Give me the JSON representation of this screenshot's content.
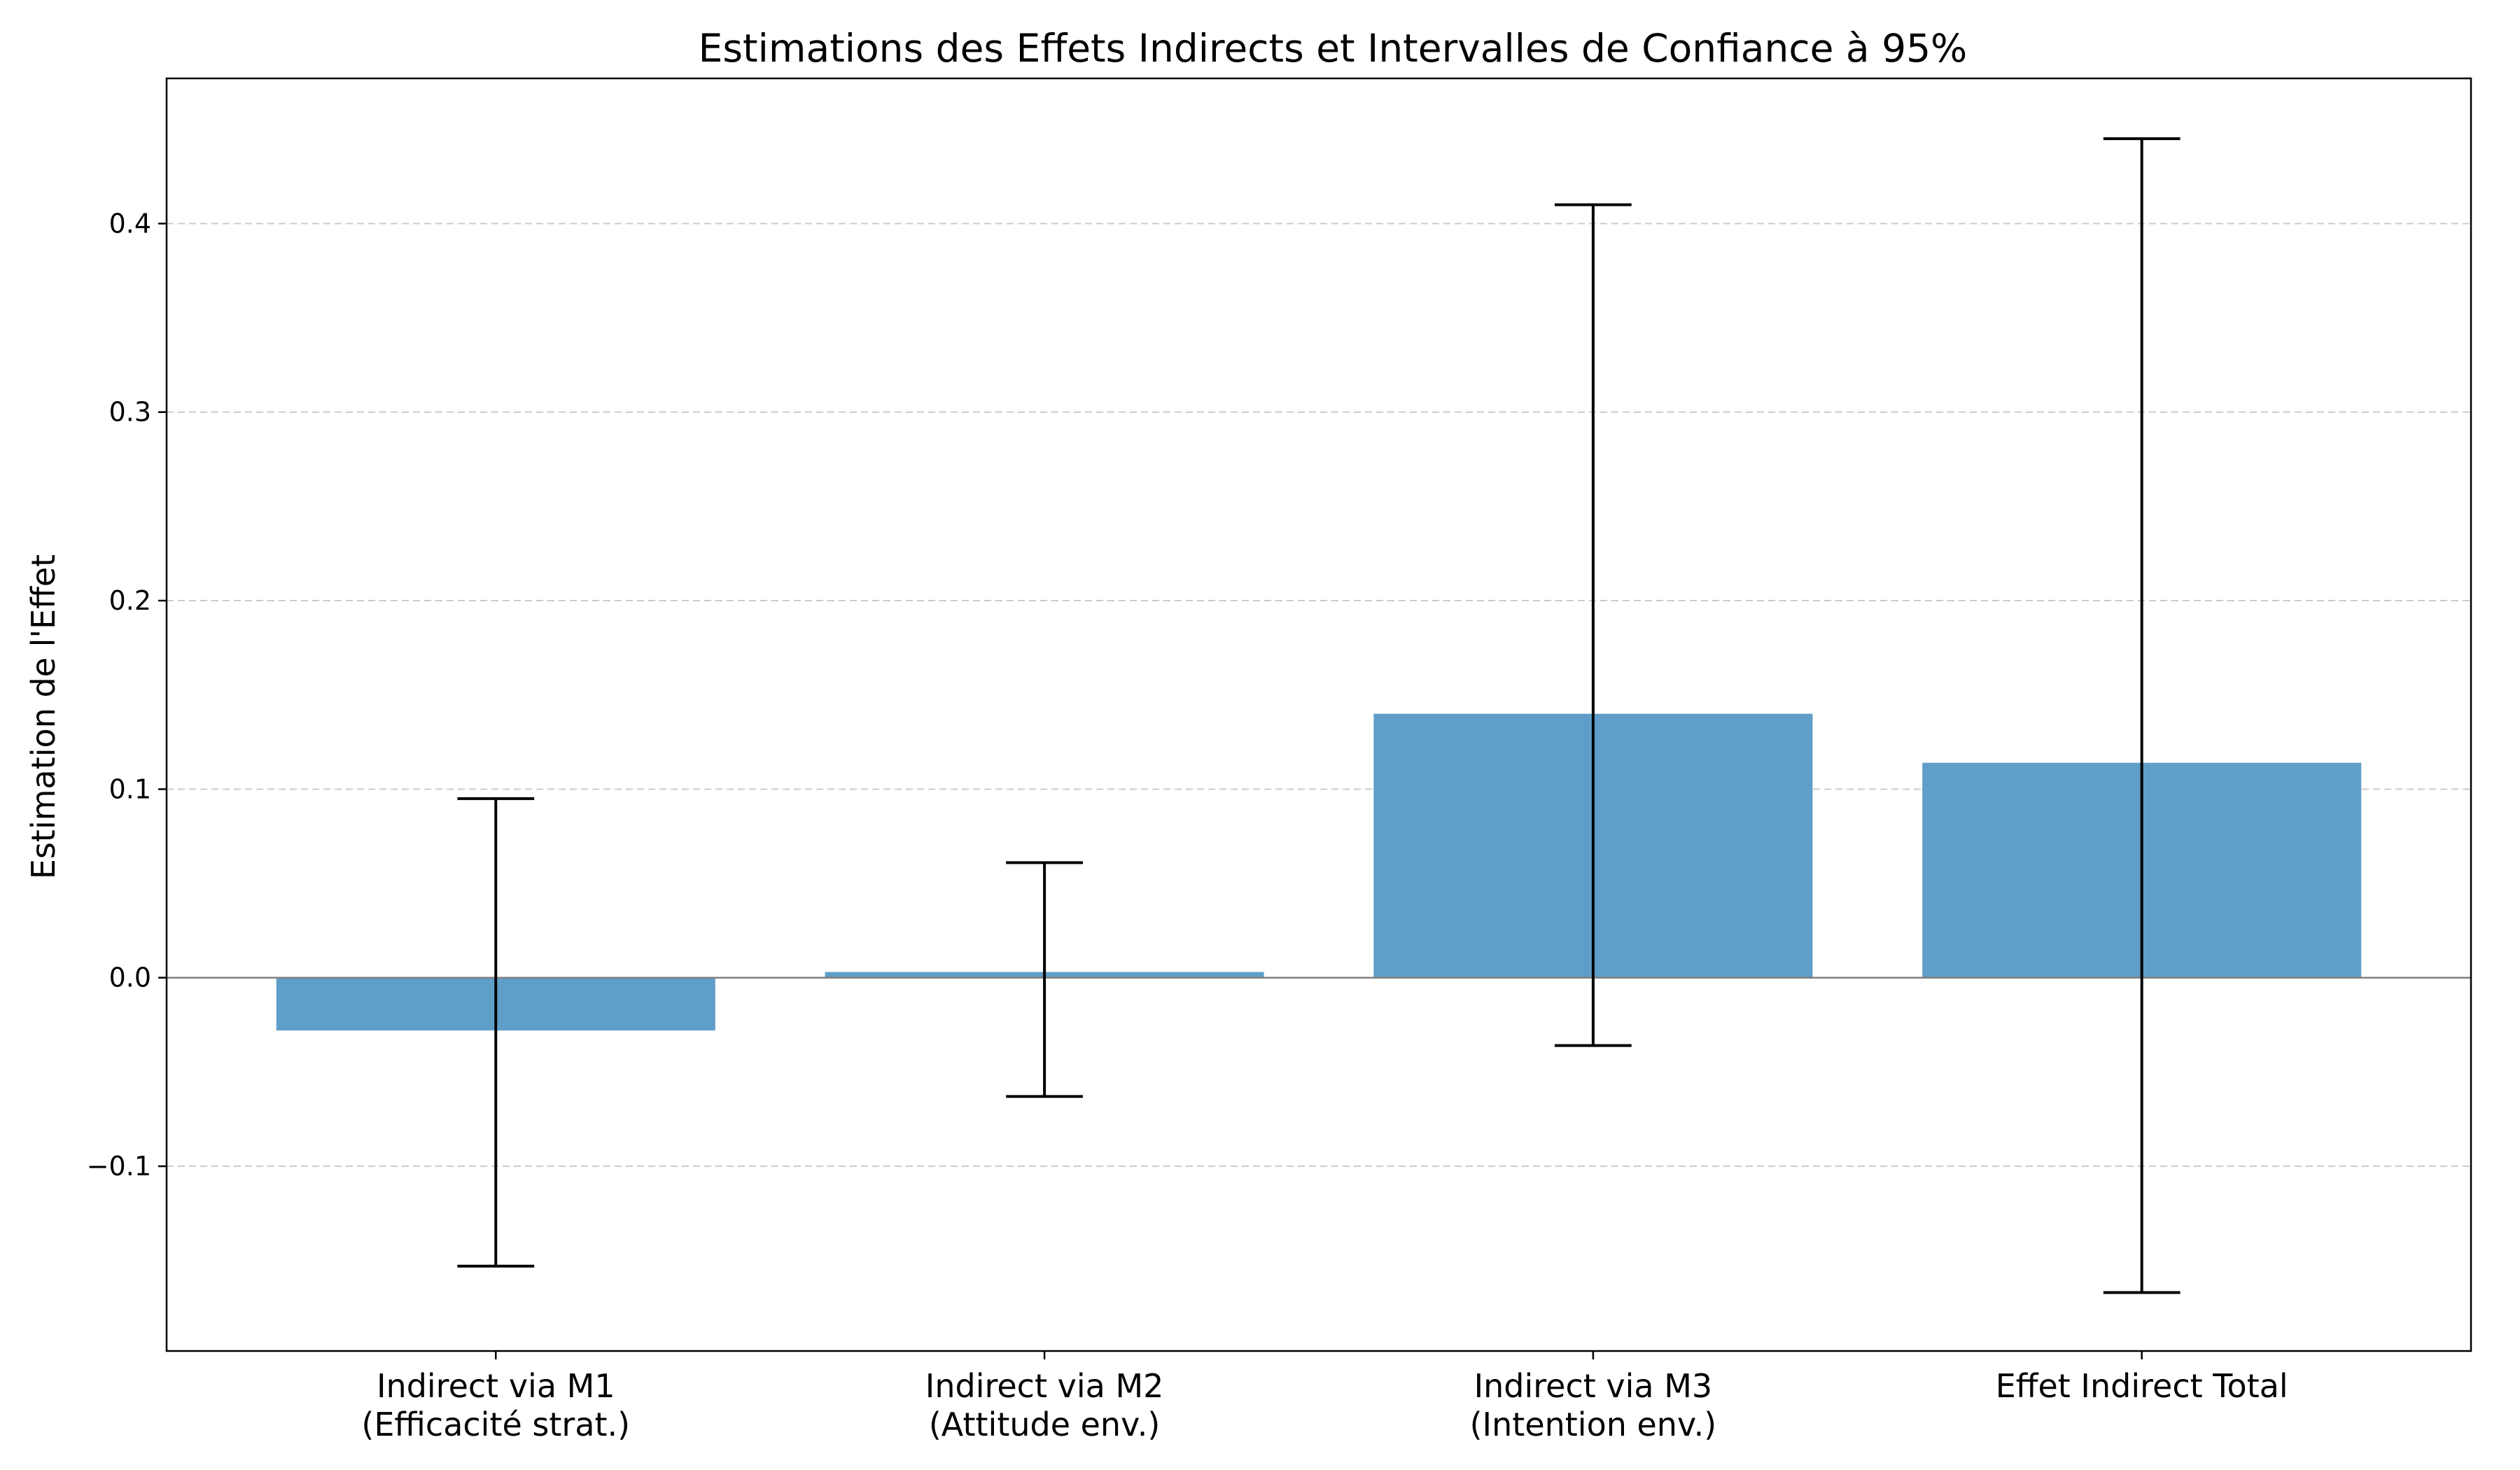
{
  "chart_data": {
    "type": "bar",
    "title": "Estimations des Effets Indirects et Intervalles de Confiance à 95%",
    "xlabel": "",
    "ylabel": "Estimation de l'Effet",
    "categories": [
      [
        "Indirect via M1",
        "(Efficacité strat.)"
      ],
      [
        "Indirect via M2",
        "(Attitude env.)"
      ],
      [
        "Indirect via M3",
        "(Intention env.)"
      ],
      [
        "Effet Indirect Total"
      ]
    ],
    "values": [
      -0.028,
      0.003,
      0.14,
      0.114
    ],
    "ci_lower": [
      -0.153,
      -0.063,
      -0.036,
      -0.167
    ],
    "ci_upper": [
      0.095,
      0.061,
      0.41,
      0.445
    ],
    "ylim": [
      -0.198,
      0.477
    ],
    "yticks": [
      -0.1,
      0.0,
      0.1,
      0.2,
      0.3,
      0.4
    ],
    "ytick_labels": [
      "−0.1",
      "0.0",
      "0.1",
      "0.2",
      "0.3",
      "0.4"
    ],
    "grid": "y-dashed",
    "bar_color": "#5f9ec8",
    "errorbar_color": "#000000",
    "zero_line_color": "#808080",
    "grid_color": "#cccccc"
  }
}
